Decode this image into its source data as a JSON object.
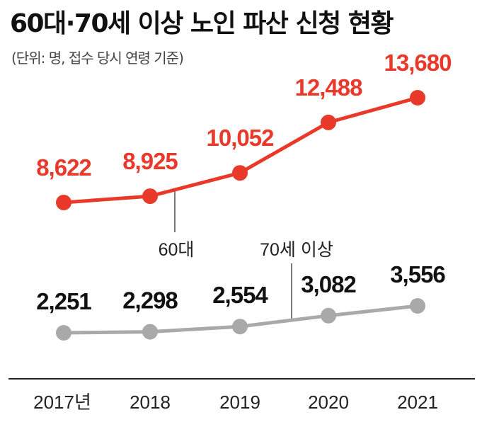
{
  "header": {
    "title": "60대·70세 이상 노인 파산 신청 현황",
    "subtitle": "(단위: 명, 접수 당시 연령 기준)"
  },
  "colors": {
    "red": "#e8392b",
    "gray": "#a9a9a9",
    "text": "#111111"
  },
  "chart_data": {
    "type": "line",
    "title": "60대·70세 이상 노인 파산 신청 현황",
    "subtitle": "(단위: 명, 접수 당시 연령 기준)",
    "categories": [
      "2017년",
      "2018",
      "2019",
      "2020",
      "2021"
    ],
    "series": [
      {
        "name": "60대",
        "color": "#e8392b",
        "values": [
          8622,
          8925,
          10052,
          12488,
          13680
        ]
      },
      {
        "name": "70세 이상",
        "color": "#a9a9a9",
        "values": [
          2251,
          2298,
          2554,
          3082,
          3556
        ]
      }
    ],
    "value_labels": [
      [
        "8,622",
        "8,925",
        "10,052",
        "12,488",
        "13,680"
      ],
      [
        "2,251",
        "2,298",
        "2,554",
        "3,082",
        "3,556"
      ]
    ],
    "grid": false,
    "legend": "inline callouts"
  }
}
